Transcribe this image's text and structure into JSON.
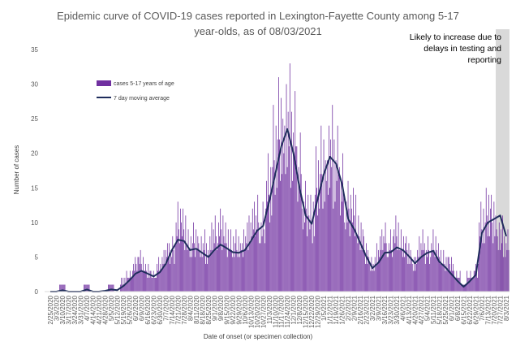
{
  "chart_data": {
    "type": "bar",
    "title_lines": [
      "Epidemic curve of COVID-19 cases reported in Lexington-Fayette County among 5-17",
      "year-olds, as of 08/03/2021"
    ],
    "xlabel": "Date of onset (or specimen collection)",
    "ylabel": "Number of cases",
    "ylim": [
      0,
      35
    ],
    "yticks": [
      0,
      5,
      10,
      15,
      20,
      25,
      30,
      35
    ],
    "grid": false,
    "legend_position": "upper-left",
    "x_tick_labels": [
      "2/25/2020",
      "3/3/2020",
      "3/10/2020",
      "3/17/2020",
      "3/24/2020",
      "3/31/2020",
      "4/7/2020",
      "4/14/2020",
      "4/21/2020",
      "4/28/2020",
      "5/5/2020",
      "5/12/2020",
      "5/19/2020",
      "5/26/2020",
      "6/2/2020",
      "6/9/2020",
      "6/16/2020",
      "6/23/2020",
      "6/30/2020",
      "7/7/2020",
      "7/14/2020",
      "7/21/2020",
      "7/28/2020",
      "8/4/2020",
      "8/11/2020",
      "8/18/2020",
      "8/25/2020",
      "9/1/2020",
      "9/8/2020",
      "9/15/2020",
      "9/22/2020",
      "9/29/2020",
      "10/6/2020",
      "10/13/2020",
      "10/20/2020",
      "10/27/2020",
      "11/3/2020",
      "11/10/2020",
      "11/17/2020",
      "11/24/2020",
      "12/1/2020",
      "12/8/2020",
      "12/15/2020",
      "12/22/2020",
      "12/29/2020",
      "1/5/2021",
      "1/12/2021",
      "1/19/2021",
      "1/26/2021",
      "2/2/2021",
      "2/9/2021",
      "2/16/2021",
      "2/23/2021",
      "3/2/2021",
      "3/9/2021",
      "3/16/2021",
      "3/23/2021",
      "3/30/2021",
      "4/6/2021",
      "4/13/2021",
      "4/20/2021",
      "4/27/2021",
      "5/4/2021",
      "5/11/2021",
      "5/18/2021",
      "5/25/2021",
      "6/1/2021",
      "6/8/2021",
      "6/15/2021",
      "6/22/2021",
      "6/29/2021",
      "7/6/2021",
      "7/13/2021",
      "7/20/2021",
      "7/27/2021",
      "8/3/2021"
    ],
    "series": [
      {
        "name": "cases 5-17 years of age",
        "kind": "bar",
        "color": "#7030a0",
        "weekly_peak_values": [
          0,
          0,
          1,
          0,
          0,
          0,
          1,
          0,
          0,
          0,
          1,
          0,
          2,
          3,
          5,
          6,
          4,
          3,
          5,
          7,
          8,
          13,
          12,
          9,
          10,
          9,
          8,
          11,
          12,
          10,
          9,
          9,
          10,
          12,
          14,
          13,
          20,
          27,
          31,
          33,
          29,
          23,
          16,
          14,
          21,
          24,
          27,
          24,
          20,
          16,
          15,
          11,
          8,
          5,
          8,
          10,
          9,
          11,
          9,
          8,
          6,
          9,
          8,
          9,
          7,
          6,
          5,
          3,
          1,
          3,
          4,
          13,
          15,
          14,
          11,
          9
        ]
      },
      {
        "name": "7 day moving average",
        "kind": "line",
        "color": "#1f2d5c",
        "weekly_values": [
          0,
          0,
          0.2,
          0,
          0,
          0,
          0.3,
          0,
          0,
          0.1,
          0.3,
          0.2,
          0.8,
          1.6,
          2.6,
          3,
          2.6,
          2.2,
          2.8,
          4,
          6,
          7.5,
          7.3,
          6,
          6.2,
          5.6,
          5,
          6,
          6.8,
          6.3,
          5.7,
          5.6,
          6,
          7.3,
          8.8,
          9.5,
          13,
          17,
          21,
          23.5,
          20,
          15,
          11,
          9.8,
          13.5,
          17,
          19.5,
          18.5,
          15.5,
          10.5,
          9,
          7,
          5,
          3.4,
          4.2,
          5.6,
          5.7,
          6.4,
          6,
          5.1,
          4.1,
          5,
          5.6,
          5.9,
          4.3,
          3.5,
          2.5,
          1.5,
          0.7,
          1.5,
          2.4,
          8.5,
          10,
          10.5,
          11,
          8
        ]
      }
    ],
    "annotation": {
      "lines": [
        "Likely to increase due to",
        "delays in testing and",
        "reporting"
      ],
      "shade_color": "#d9d9d9"
    }
  }
}
